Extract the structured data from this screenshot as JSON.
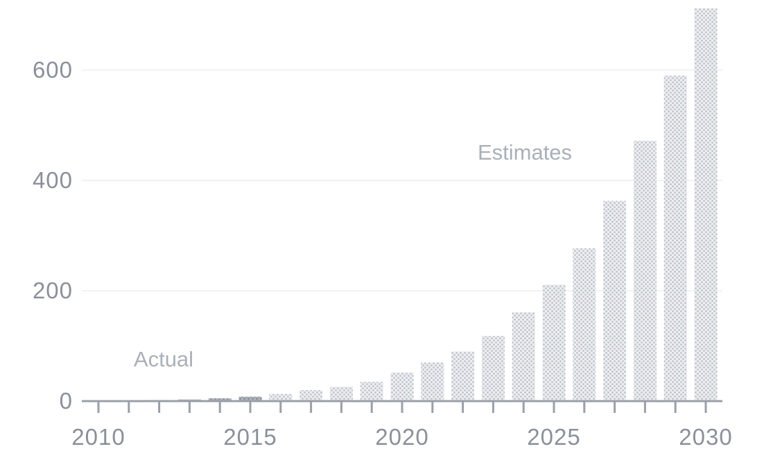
{
  "chart_data": {
    "type": "bar",
    "categories": [
      "2010",
      "2011",
      "2012",
      "2013",
      "2014",
      "2015",
      "2016",
      "2017",
      "2018",
      "2019",
      "2020",
      "2021",
      "2022",
      "2023",
      "2024",
      "2025",
      "2026",
      "2027",
      "2028",
      "2029",
      "2030"
    ],
    "series": [
      {
        "values": [
          0.5,
          1,
          2,
          3,
          5,
          8,
          13,
          20,
          26,
          35,
          52,
          70,
          90,
          118,
          161,
          211,
          277,
          363,
          472,
          590,
          712
        ]
      }
    ],
    "segments": [
      {
        "label": "Actual",
        "from": "2010",
        "to": "2015",
        "color": "#8e959e"
      },
      {
        "label": "Estimates",
        "from": "2016",
        "to": "2030",
        "color": "#d3d7dc"
      }
    ],
    "xticks_labeled": [
      "2010",
      "2015",
      "2020",
      "2025",
      "2030"
    ],
    "yticks": [
      0,
      200,
      400,
      600
    ],
    "ylim": [
      0,
      720
    ],
    "grid": true,
    "title": "",
    "xlabel": "",
    "ylabel": ""
  }
}
